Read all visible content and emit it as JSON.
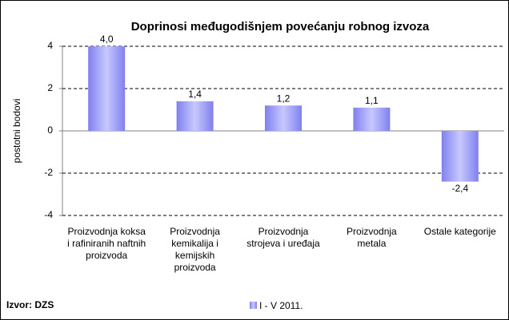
{
  "chart_data": {
    "type": "bar",
    "title": "Doprinosi međugodišnjem povećanju robnog izvoza",
    "y_label": "postotni bodovi",
    "source": "Izvor: DZS",
    "categories": [
      "Proizvodnja koksa i rafiniranih naftnih proizvoda",
      "Proizvodnja kemikalija i kemijskih proizvoda",
      "Proizvodnja strojeva i uređaja",
      "Proizvodnja metala",
      "Ostale kategorije"
    ],
    "series": [
      {
        "name": "I - V 2011.",
        "color": "#8080f0",
        "values": [
          4.0,
          1.4,
          1.2,
          1.1,
          -2.4
        ],
        "value_labels": [
          "4,0",
          "1,4",
          "1,2",
          "1,1",
          "-2,4"
        ]
      }
    ],
    "ylim": [
      -4,
      4
    ],
    "yticks": [
      -4,
      -2,
      0,
      2,
      4
    ],
    "grid": true
  }
}
